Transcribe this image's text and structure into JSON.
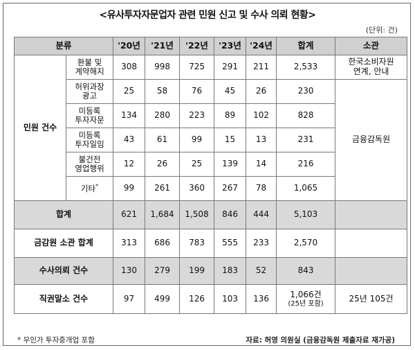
{
  "title": "<유사투자자문업자 관련 민원 신고 및 수사 의뢰 현황>",
  "unit": "(단위: 건)",
  "headers": {
    "category": "분류",
    "y20": "'20년",
    "y21": "'21년",
    "y22": "'22년",
    "y23": "'23년",
    "y24": "'24년",
    "total": "합계",
    "agency": "소관"
  },
  "complaints": {
    "group_label": "민원 건수",
    "rows": [
      {
        "label_line1": "환불 및",
        "label_line2": "계약해지",
        "y20": "308",
        "y21": "998",
        "y22": "725",
        "y23": "291",
        "y24": "211",
        "total": "2,533"
      },
      {
        "label_line1": "허위과장",
        "label_line2": "광고",
        "y20": "25",
        "y21": "58",
        "y22": "76",
        "y23": "45",
        "y24": "26",
        "total": "230"
      },
      {
        "label_line1": "미등록",
        "label_line2": "투자자문",
        "y20": "134",
        "y21": "280",
        "y22": "223",
        "y23": "89",
        "y24": "102",
        "total": "828"
      },
      {
        "label_line1": "미등록",
        "label_line2": "투자일임",
        "y20": "43",
        "y21": "61",
        "y22": "99",
        "y23": "15",
        "y24": "13",
        "total": "231"
      },
      {
        "label_line1": "불건전",
        "label_line2": "영업행위",
        "y20": "12",
        "y21": "26",
        "y22": "25",
        "y23": "139",
        "y24": "14",
        "total": "216"
      },
      {
        "label_line1": "기타",
        "label_line2": "",
        "mark": "*",
        "y20": "99",
        "y21": "261",
        "y22": "360",
        "y23": "267",
        "y24": "78",
        "total": "1,065"
      }
    ],
    "agency_kca_line1": "한국소비자원",
    "agency_kca_line2": "연계, 안내",
    "agency_fss": "금융감독원"
  },
  "sum": {
    "label": "합계",
    "y20": "621",
    "y21": "1,684",
    "y22": "1,508",
    "y23": "846",
    "y24": "444",
    "total": "5,103"
  },
  "fss_sum": {
    "label": "금감원 소관 합계",
    "y20": "313",
    "y21": "686",
    "y22": "783",
    "y23": "555",
    "y24": "233",
    "total": "2,570"
  },
  "investigation": {
    "label": "수사의뢰 건수",
    "y20": "130",
    "y21": "279",
    "y22": "199",
    "y23": "183",
    "y24": "52",
    "total": "843"
  },
  "dismissal": {
    "label": "직권말소 건수",
    "y20": "97",
    "y21": "499",
    "y22": "126",
    "y23": "103",
    "y24": "136",
    "total_main": "1,066건",
    "total_note": "(25년 포함)",
    "agency": "25년 105건"
  },
  "footnote": "* 무인가 투자중개업 포함",
  "source": "자료: 허영 의원실 (금융감독원 제출자료 재가공)"
}
